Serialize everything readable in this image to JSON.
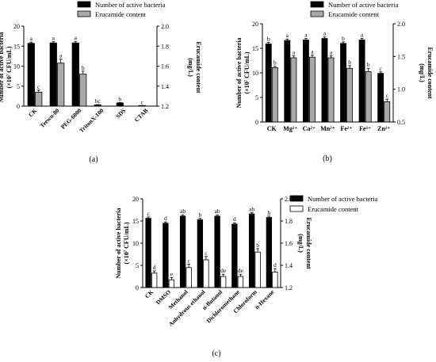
{
  "chart_data": [
    {
      "type": "bar",
      "panel_label": "(a)",
      "legend": [
        "Number of active bacteria",
        "Erucamide content"
      ],
      "legend_position": "top",
      "ylabel": "Number of active bacteria",
      "ylabel_unit": "(×10⁷ CFU/mL)",
      "y2label": "Erucamide content",
      "y2label_unit": "(mg/L)",
      "ylim": [
        0,
        20
      ],
      "y_ticks": [
        "0",
        "5",
        "10",
        "15",
        "20"
      ],
      "y2lim": [
        1.2,
        2.0
      ],
      "y2_ticks": [
        "1.2",
        "1.4",
        "1.6",
        "1.8",
        "2.0"
      ],
      "categories": [
        "CK",
        "Teewn-80",
        "PEG-6000",
        "TritonX-100",
        "SDS",
        "CTAB"
      ],
      "series": [
        {
          "name": "Number of active bacteria",
          "axis": "left",
          "color": "#000000",
          "values": [
            15.7,
            15.8,
            15.8,
            0.3,
            0.8,
            0.05
          ],
          "errors": [
            0.3,
            0.3,
            0.4,
            0.1,
            0.1,
            0.05
          ],
          "labels": [
            "a",
            "a",
            "a",
            "bc",
            "b",
            "c"
          ]
        },
        {
          "name": "Erucamide content",
          "axis": "right",
          "color": "#a9a9a9",
          "values": [
            1.34,
            1.63,
            1.52,
            null,
            null,
            null
          ],
          "errors": [
            0.02,
            0.04,
            0.03,
            null,
            null,
            null
          ],
          "labels": [
            "c",
            "a",
            "b",
            "",
            "",
            ""
          ]
        }
      ]
    },
    {
      "type": "bar",
      "panel_label": "(b)",
      "legend": [
        "Number of active bacteria",
        "Erucamide content"
      ],
      "legend_position": "top",
      "ylabel": "Number of active bacteria",
      "ylabel_unit": "(×10⁷ CFU/mL)",
      "y2label": "Erucamide content",
      "y2label_unit": "(mg/L)",
      "ylim": [
        0,
        20
      ],
      "y_ticks": [
        "0",
        "5",
        "10",
        "15",
        "20"
      ],
      "y2lim": [
        0.5,
        2.0
      ],
      "y2_ticks": [
        "0.5",
        "1.0",
        "1.5",
        "2.0"
      ],
      "categories": [
        "CK",
        "Mg²⁺",
        "Ca²⁺",
        "Mn²⁺",
        "Fe²⁺",
        "Fe³⁺",
        "Zn²⁺"
      ],
      "series": [
        {
          "name": "Number of active bacteria",
          "axis": "left",
          "color": "#000000",
          "values": [
            15.9,
            16.6,
            16.7,
            17.0,
            16.0,
            16.7,
            9.9
          ],
          "errors": [
            0.3,
            0.3,
            0.3,
            0.3,
            0.3,
            0.3,
            0.3
          ],
          "labels": [
            "b",
            "a",
            "a",
            "a",
            "b",
            "a",
            "c"
          ]
        },
        {
          "name": "Erucamide content",
          "axis": "right",
          "color": "#a9a9a9",
          "values": [
            1.33,
            1.48,
            1.49,
            1.48,
            1.32,
            1.27,
            0.81
          ],
          "errors": [
            0.02,
            0.03,
            0.03,
            0.03,
            0.04,
            0.05,
            0.04
          ],
          "labels": [
            "b",
            "a",
            "a",
            "a",
            "b",
            "b",
            "c"
          ]
        }
      ]
    },
    {
      "type": "bar",
      "panel_label": "(c)",
      "legend": [
        "Number of active bacteria",
        "Erucamide content"
      ],
      "legend_position": "top-right",
      "ylabel": "Number of active bacteria",
      "ylabel_unit": "(×10⁷ CFU/mL)",
      "y2label": "Erucamide content",
      "y2label_unit": "(mg/L)",
      "ylim": [
        0,
        20
      ],
      "y_ticks": [
        "0",
        "5",
        "10",
        "15",
        "20"
      ],
      "y2lim": [
        1.2,
        2.0
      ],
      "y2_ticks": [
        "1.2",
        "1.4",
        "1.6",
        "1.8",
        "2.0"
      ],
      "categories": [
        "CK",
        "DMSO",
        "Methanol",
        "Anhydrous ethanol",
        "n-Butanol",
        "Dichloromethane",
        "Chloroform",
        "n-Hexane"
      ],
      "series": [
        {
          "name": "Number of active bacteria",
          "axis": "left",
          "color": "#000000",
          "values": [
            15.6,
            14.5,
            16.1,
            15.3,
            16.1,
            14.3,
            16.6,
            15.8
          ],
          "errors": [
            0.3,
            0.3,
            0.3,
            0.3,
            0.3,
            0.3,
            0.3,
            0.3
          ],
          "labels": [
            "c",
            "d",
            "ab",
            "b",
            "ab",
            "d",
            "ab",
            "b"
          ]
        },
        {
          "name": "Erucamide content",
          "axis": "right",
          "color": "#ffffff",
          "values": [
            1.33,
            1.27,
            1.38,
            1.45,
            1.3,
            1.3,
            1.52,
            1.34
          ],
          "errors": [
            0.02,
            0.02,
            0.03,
            0.03,
            0.02,
            0.02,
            0.03,
            0.03
          ],
          "labels": [
            "d",
            "e",
            "c",
            "c",
            "de",
            "de",
            "b",
            "d"
          ]
        }
      ]
    }
  ]
}
